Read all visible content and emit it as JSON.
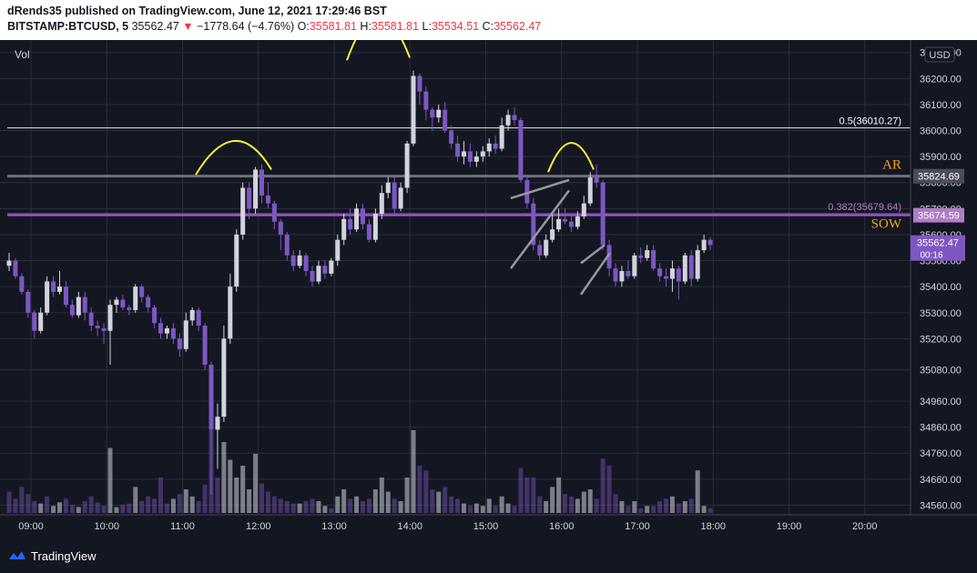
{
  "header": {
    "published": "dRends35 published on TradingView.com, June 12, 2021 17:29:46 BST",
    "symbol": "BITSTAMP:BTCUSD, 5",
    "last": "35562.47",
    "change": "−1778.64 (−4.76%)",
    "o_label": "O:",
    "o_value": "35581.81",
    "h_label": "H:",
    "h_value": "35581.81",
    "l_label": "L:",
    "l_value": "35534.51",
    "c_label": "C:",
    "c_value": "35562.47"
  },
  "footer": {
    "brand": "TradingView"
  },
  "colors": {
    "background": "#131722",
    "up": "#d1d4dc",
    "down": "#7e57c2",
    "grid": "#2a2e39",
    "annotation": "#ffeb3b",
    "label_orange": "#f7a21b",
    "fib_purple": "#9c27b0"
  },
  "chart_data": {
    "type": "candlestick",
    "pane_label": "Vol",
    "currency": "USD",
    "ylim": [
      34530,
      36320
    ],
    "y_ticks": [
      34560,
      34660,
      34760,
      34860,
      34960,
      35080,
      35200,
      35300,
      35400,
      35500,
      35600,
      35700,
      35800,
      35900,
      36000,
      36100,
      36200,
      36300
    ],
    "y_tick_labels": [
      "34560.00",
      "34660.00",
      "34760.00",
      "34860.00",
      "34960.00",
      "35080.00",
      "35200.00",
      "35300.00",
      "35400.00",
      "35500.00",
      "35600.00",
      "35700.00",
      "35800.00",
      "35900.00",
      "36000.00",
      "36100.00",
      "36200.00",
      "36300.00"
    ],
    "x_ticks": [
      "09:00",
      "10:00",
      "11:00",
      "12:00",
      "13:00",
      "14:00",
      "15:00",
      "16:00",
      "17:00",
      "18:00",
      "19:00",
      "20:00"
    ],
    "candles": [
      [
        35480,
        35500,
        35530,
        35460
      ],
      [
        35500,
        35440,
        35510,
        35430
      ],
      [
        35440,
        35380,
        35450,
        35370
      ],
      [
        35380,
        35300,
        35390,
        35280
      ],
      [
        35300,
        35230,
        35310,
        35200
      ],
      [
        35230,
        35300,
        35320,
        35220
      ],
      [
        35300,
        35420,
        35440,
        35290
      ],
      [
        35420,
        35380,
        35440,
        35360
      ],
      [
        35380,
        35400,
        35460,
        35370
      ],
      [
        35400,
        35330,
        35420,
        35320
      ],
      [
        35330,
        35290,
        35350,
        35280
      ],
      [
        35290,
        35360,
        35380,
        35280
      ],
      [
        35360,
        35300,
        35380,
        35270
      ],
      [
        35300,
        35250,
        35320,
        35230
      ],
      [
        35250,
        35240,
        35270,
        35210
      ],
      [
        35240,
        35230,
        35260,
        35180
      ],
      [
        35230,
        35330,
        35350,
        35100
      ],
      [
        35330,
        35350,
        35360,
        35300
      ],
      [
        35350,
        35320,
        35370,
        35310
      ],
      [
        35320,
        35310,
        35330,
        35290
      ],
      [
        35310,
        35400,
        35410,
        35300
      ],
      [
        35400,
        35360,
        35410,
        35340
      ],
      [
        35360,
        35320,
        35370,
        35300
      ],
      [
        35320,
        35260,
        35330,
        35240
      ],
      [
        35260,
        35220,
        35280,
        35200
      ],
      [
        35220,
        35240,
        35250,
        35200
      ],
      [
        35240,
        35200,
        35260,
        35180
      ],
      [
        35200,
        35160,
        35220,
        35130
      ],
      [
        35160,
        35270,
        35300,
        35150
      ],
      [
        35270,
        35310,
        35320,
        35250
      ],
      [
        35310,
        35250,
        35320,
        35230
      ],
      [
        35250,
        35100,
        35260,
        35080
      ],
      [
        35100,
        34850,
        35110,
        34600
      ],
      [
        34850,
        34900,
        34950,
        34700
      ],
      [
        34900,
        35200,
        35250,
        34880
      ],
      [
        35200,
        35400,
        35450,
        35180
      ],
      [
        35400,
        35600,
        35620,
        35380
      ],
      [
        35600,
        35780,
        35800,
        35580
      ],
      [
        35780,
        35700,
        35800,
        35660
      ],
      [
        35700,
        35850,
        35860,
        35680
      ],
      [
        35850,
        35750,
        35870,
        35720
      ],
      [
        35750,
        35720,
        35800,
        35700
      ],
      [
        35720,
        35650,
        35730,
        35620
      ],
      [
        35650,
        35600,
        35660,
        35540
      ],
      [
        35600,
        35520,
        35610,
        35500
      ],
      [
        35520,
        35480,
        35540,
        35460
      ],
      [
        35480,
        35520,
        35540,
        35470
      ],
      [
        35520,
        35460,
        35530,
        35440
      ],
      [
        35460,
        35420,
        35480,
        35400
      ],
      [
        35420,
        35480,
        35500,
        35410
      ],
      [
        35480,
        35450,
        35500,
        35430
      ],
      [
        35450,
        35500,
        35510,
        35440
      ],
      [
        35500,
        35580,
        35600,
        35480
      ],
      [
        35580,
        35660,
        35680,
        35560
      ],
      [
        35660,
        35620,
        35700,
        35600
      ],
      [
        35620,
        35700,
        35720,
        35610
      ],
      [
        35700,
        35640,
        35720,
        35620
      ],
      [
        35640,
        35580,
        35660,
        35570
      ],
      [
        35580,
        35680,
        35700,
        35570
      ],
      [
        35680,
        35760,
        35790,
        35660
      ],
      [
        35760,
        35800,
        35820,
        35740
      ],
      [
        35800,
        35700,
        35820,
        35680
      ],
      [
        35700,
        35780,
        35800,
        35690
      ],
      [
        35780,
        35950,
        35960,
        35760
      ],
      [
        35950,
        36210,
        36230,
        35940
      ],
      [
        36210,
        36150,
        36220,
        36100
      ],
      [
        36150,
        36080,
        36170,
        36040
      ],
      [
        36080,
        36050,
        36090,
        36000
      ],
      [
        36050,
        36080,
        36100,
        36030
      ],
      [
        36080,
        36000,
        36110,
        35990
      ],
      [
        36000,
        35950,
        36020,
        35930
      ],
      [
        35950,
        35900,
        35980,
        35880
      ],
      [
        35900,
        35920,
        35960,
        35870
      ],
      [
        35920,
        35880,
        35950,
        35860
      ],
      [
        35880,
        35900,
        35920,
        35860
      ],
      [
        35900,
        35920,
        35940,
        35880
      ],
      [
        35920,
        35950,
        35970,
        35900
      ],
      [
        35950,
        35930,
        35980,
        35910
      ],
      [
        35930,
        36020,
        36050,
        35920
      ],
      [
        36020,
        36060,
        36080,
        36000
      ],
      [
        36060,
        36040,
        36090,
        36020
      ],
      [
        36040,
        35810,
        36050,
        35800
      ],
      [
        35810,
        35720,
        35830,
        35700
      ],
      [
        35720,
        35560,
        35740,
        35540
      ],
      [
        35560,
        35520,
        35580,
        35500
      ],
      [
        35520,
        35580,
        35600,
        35510
      ],
      [
        35580,
        35620,
        35680,
        35570
      ],
      [
        35620,
        35660,
        35700,
        35610
      ],
      [
        35660,
        35650,
        35700,
        35640
      ],
      [
        35650,
        35630,
        35680,
        35610
      ],
      [
        35630,
        35670,
        35690,
        35620
      ],
      [
        35670,
        35720,
        35750,
        35660
      ],
      [
        35720,
        35820,
        35840,
        35710
      ],
      [
        35820,
        35800,
        35870,
        35780
      ],
      [
        35800,
        35560,
        35810,
        35540
      ],
      [
        35560,
        35470,
        35580,
        35440
      ],
      [
        35470,
        35420,
        35490,
        35400
      ],
      [
        35420,
        35460,
        35480,
        35400
      ],
      [
        35460,
        35440,
        35500,
        35430
      ],
      [
        35440,
        35520,
        35530,
        35430
      ],
      [
        35520,
        35510,
        35550,
        35490
      ],
      [
        35510,
        35540,
        35560,
        35500
      ],
      [
        35540,
        35470,
        35560,
        35460
      ],
      [
        35470,
        35440,
        35490,
        35420
      ],
      [
        35440,
        35430,
        35470,
        35400
      ],
      [
        35430,
        35470,
        35500,
        35380
      ],
      [
        35470,
        35420,
        35480,
        35350
      ],
      [
        35420,
        35520,
        35530,
        35410
      ],
      [
        35520,
        35430,
        35540,
        35400
      ],
      [
        35430,
        35540,
        35560,
        35420
      ],
      [
        35540,
        35580,
        35600,
        35530
      ],
      [
        35580,
        35560,
        35590,
        35540
      ]
    ],
    "volume": [
      [
        18,
        "d"
      ],
      [
        12,
        "d"
      ],
      [
        22,
        "d"
      ],
      [
        16,
        "d"
      ],
      [
        10,
        "d"
      ],
      [
        8,
        "u"
      ],
      [
        14,
        "d"
      ],
      [
        6,
        "u"
      ],
      [
        9,
        "u"
      ],
      [
        12,
        "d"
      ],
      [
        7,
        "d"
      ],
      [
        5,
        "u"
      ],
      [
        10,
        "d"
      ],
      [
        14,
        "d"
      ],
      [
        9,
        "d"
      ],
      [
        6,
        "d"
      ],
      [
        55,
        "u"
      ],
      [
        5,
        "u"
      ],
      [
        7,
        "d"
      ],
      [
        8,
        "d"
      ],
      [
        22,
        "u"
      ],
      [
        10,
        "d"
      ],
      [
        14,
        "d"
      ],
      [
        12,
        "d"
      ],
      [
        30,
        "d"
      ],
      [
        8,
        "d"
      ],
      [
        12,
        "u"
      ],
      [
        16,
        "d"
      ],
      [
        20,
        "u"
      ],
      [
        14,
        "u"
      ],
      [
        10,
        "d"
      ],
      [
        24,
        "d"
      ],
      [
        70,
        "d"
      ],
      [
        30,
        "d"
      ],
      [
        60,
        "u"
      ],
      [
        45,
        "u"
      ],
      [
        30,
        "u"
      ],
      [
        40,
        "u"
      ],
      [
        20,
        "u"
      ],
      [
        50,
        "u"
      ],
      [
        25,
        "d"
      ],
      [
        18,
        "d"
      ],
      [
        14,
        "d"
      ],
      [
        12,
        "d"
      ],
      [
        10,
        "d"
      ],
      [
        8,
        "d"
      ],
      [
        8,
        "u"
      ],
      [
        10,
        "d"
      ],
      [
        12,
        "d"
      ],
      [
        10,
        "u"
      ],
      [
        6,
        "u"
      ],
      [
        4,
        "d"
      ],
      [
        14,
        "u"
      ],
      [
        20,
        "u"
      ],
      [
        12,
        "d"
      ],
      [
        14,
        "u"
      ],
      [
        10,
        "d"
      ],
      [
        12,
        "d"
      ],
      [
        20,
        "u"
      ],
      [
        30,
        "u"
      ],
      [
        18,
        "u"
      ],
      [
        12,
        "d"
      ],
      [
        10,
        "u"
      ],
      [
        30,
        "u"
      ],
      [
        70,
        "u"
      ],
      [
        40,
        "d"
      ],
      [
        36,
        "d"
      ],
      [
        20,
        "d"
      ],
      [
        18,
        "u"
      ],
      [
        22,
        "d"
      ],
      [
        14,
        "d"
      ],
      [
        12,
        "d"
      ],
      [
        8,
        "u"
      ],
      [
        6,
        "d"
      ],
      [
        8,
        "u"
      ],
      [
        6,
        "u"
      ],
      [
        12,
        "u"
      ],
      [
        6,
        "d"
      ],
      [
        14,
        "u"
      ],
      [
        8,
        "u"
      ],
      [
        6,
        "d"
      ],
      [
        38,
        "d"
      ],
      [
        30,
        "d"
      ],
      [
        30,
        "d"
      ],
      [
        14,
        "d"
      ],
      [
        10,
        "u"
      ],
      [
        22,
        "u"
      ],
      [
        30,
        "u"
      ],
      [
        16,
        "d"
      ],
      [
        14,
        "d"
      ],
      [
        12,
        "u"
      ],
      [
        18,
        "u"
      ],
      [
        20,
        "u"
      ],
      [
        12,
        "d"
      ],
      [
        46,
        "d"
      ],
      [
        40,
        "d"
      ],
      [
        16,
        "d"
      ],
      [
        10,
        "u"
      ],
      [
        6,
        "d"
      ],
      [
        10,
        "u"
      ],
      [
        4,
        "d"
      ],
      [
        6,
        "u"
      ],
      [
        6,
        "d"
      ],
      [
        10,
        "d"
      ],
      [
        12,
        "d"
      ],
      [
        14,
        "u"
      ],
      [
        8,
        "d"
      ],
      [
        10,
        "u"
      ],
      [
        12,
        "d"
      ],
      [
        36,
        "u"
      ],
      [
        6,
        "u"
      ],
      [
        4,
        "d"
      ]
    ],
    "levels": [
      {
        "price": 36010.27,
        "label": "0.5(36010.27)"
      },
      {
        "price": 35824.69,
        "label": "AR",
        "tag": "35824.69"
      },
      {
        "price": 35679.64,
        "label": "0.382(35679.64)"
      },
      {
        "price": 35674.59,
        "label": "SOW",
        "tag": "35674.59"
      }
    ],
    "price_tag": {
      "value": "35562.47",
      "countdown": "00:16"
    }
  }
}
